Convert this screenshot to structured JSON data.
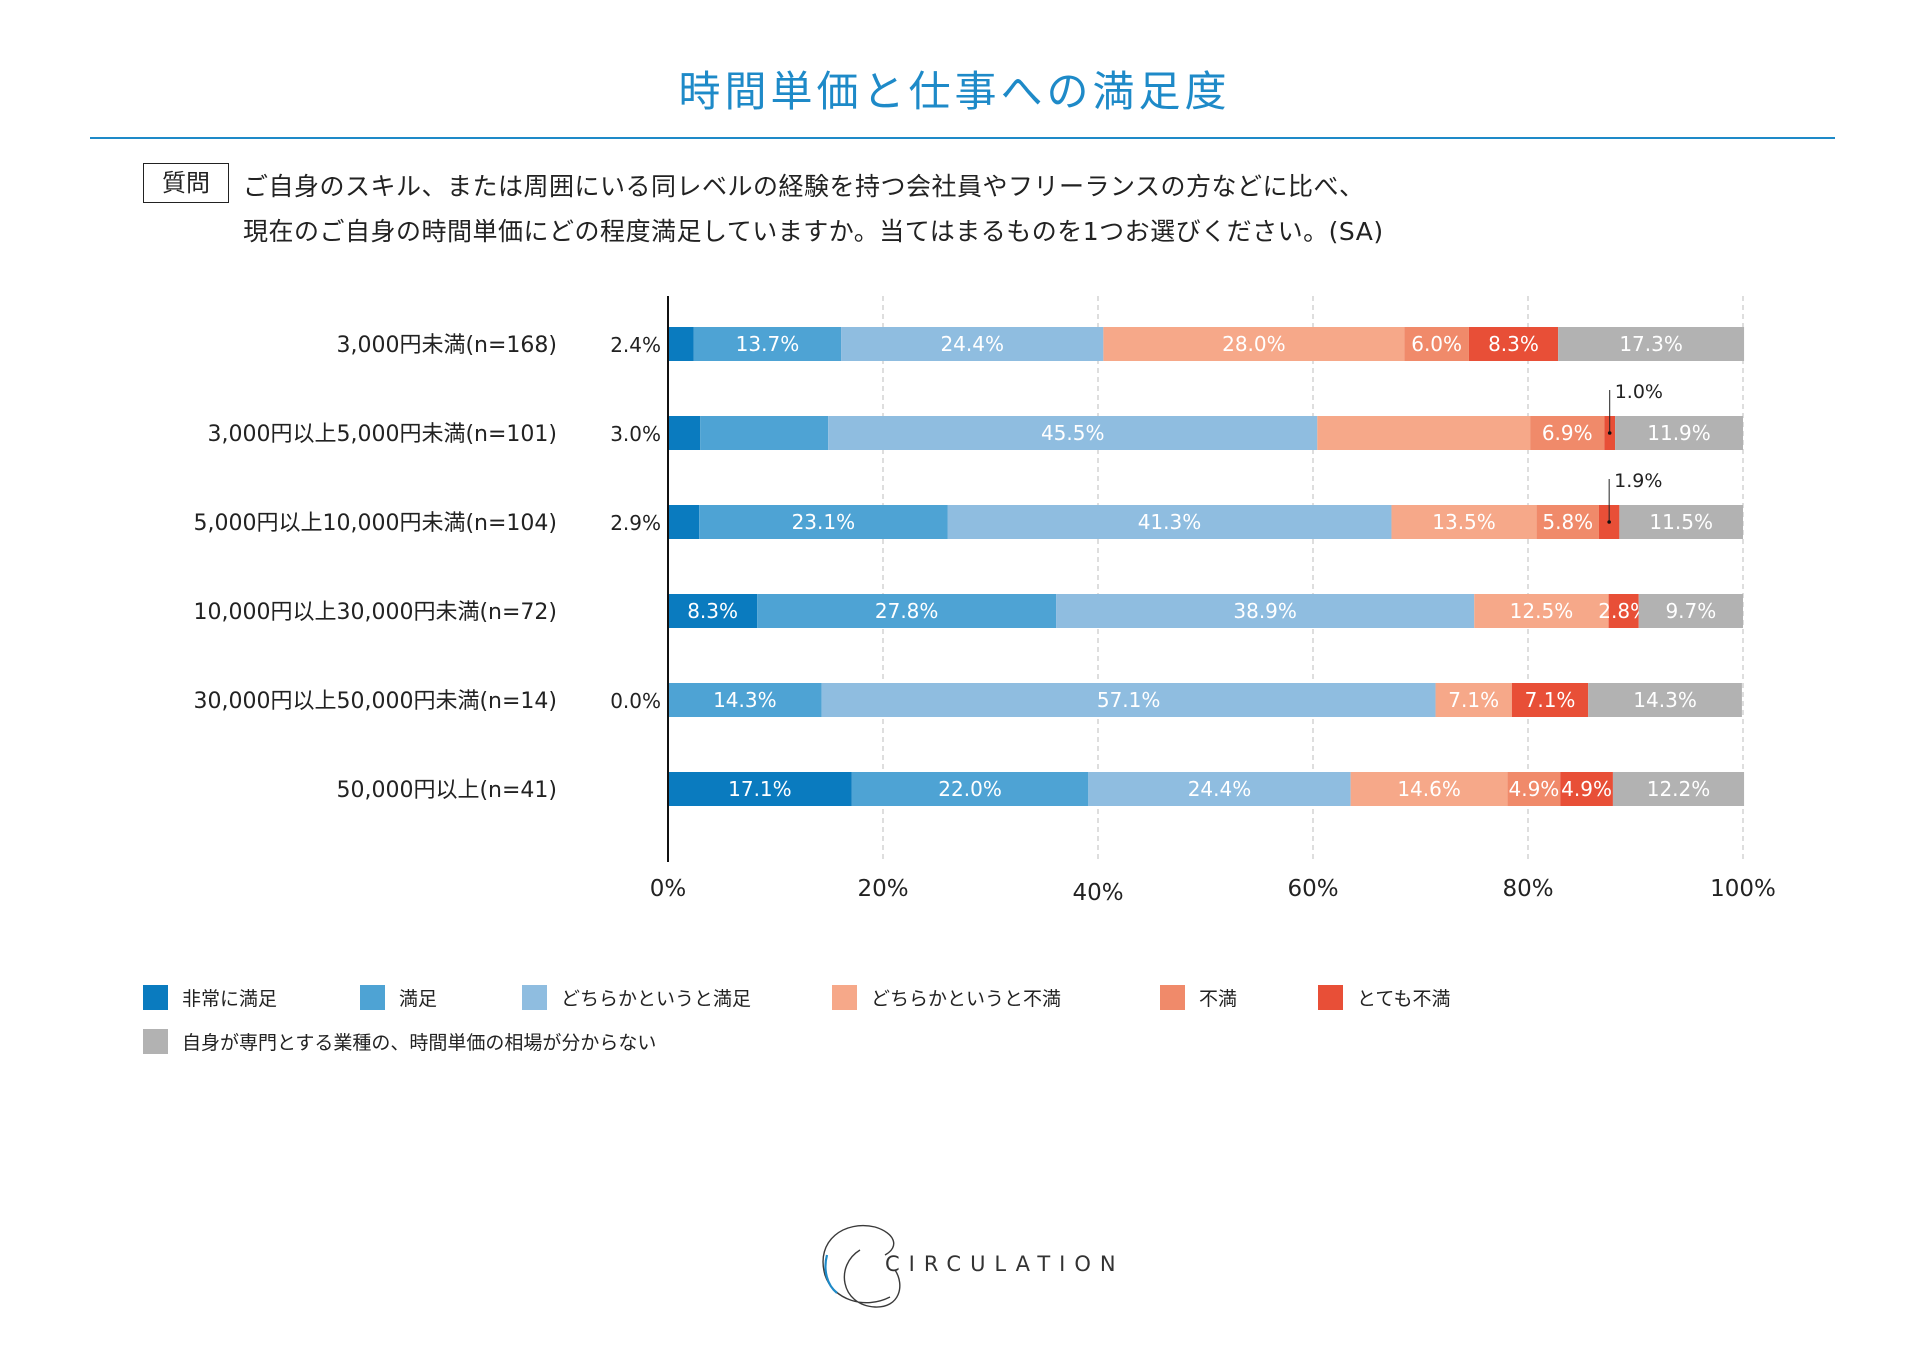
{
  "title": "時間単価と仕事への満足度",
  "question": {
    "label": "質問",
    "line1": "ご自身のスキル、または周囲にいる同レベルの経験を持つ会社員やフリーランスの方などに比べ、",
    "line2": "現在のご自身の時間単価にどの程度満足していますか。当てはまるものを1つお選びください。(SA)"
  },
  "chart_data": {
    "type": "bar",
    "orientation": "horizontal-stacked-100",
    "categories": [
      "3,000円未満(n=168)",
      "3,000円以上5,000円未満(n=101)",
      "5,000円以上10,000円未満(n=104)",
      "10,000円以上30,000円未満(n=72)",
      "30,000円以上50,000円未満(n=14)",
      "50,000円以上(n=41)"
    ],
    "series": [
      {
        "name": "非常に満足",
        "color": "#0a7bbf",
        "values": [
          2.4,
          3.0,
          2.9,
          8.3,
          0.0,
          17.1
        ],
        "labels": [
          "2.4%",
          "3.0%",
          "2.9%",
          "8.3%",
          "0.0%",
          "17.1%"
        ],
        "label_outside": [
          true,
          true,
          true,
          false,
          true,
          false
        ]
      },
      {
        "name": "満足",
        "color": "#4ea3d4",
        "values": [
          13.7,
          11.9,
          23.1,
          27.8,
          14.3,
          22.0
        ],
        "labels": [
          "13.7%",
          "",
          "23.1%",
          "27.8%",
          "14.3%",
          "22.0%"
        ]
      },
      {
        "name": "どちらかというと満足",
        "color": "#8fbde0",
        "values": [
          24.4,
          45.5,
          41.3,
          38.9,
          57.1,
          24.4
        ],
        "labels": [
          "24.4%",
          "45.5%",
          "41.3%",
          "38.9%",
          "57.1%",
          "24.4%"
        ]
      },
      {
        "name": "どちらかというと不満",
        "color": "#f6a889",
        "values": [
          28.0,
          19.8,
          13.5,
          12.5,
          7.1,
          14.6
        ],
        "labels": [
          "28.0%",
          "",
          "13.5%",
          "12.5%",
          "7.1%",
          "14.6%"
        ]
      },
      {
        "name": "不満",
        "color": "#f08a6a",
        "values": [
          6.0,
          6.9,
          5.8,
          0.0,
          0.0,
          4.9
        ],
        "labels": [
          "6.0%",
          "6.9%",
          "5.8%",
          "",
          "",
          "4.9%"
        ]
      },
      {
        "name": "とても不満",
        "color": "#e84f37",
        "values": [
          8.3,
          1.0,
          1.9,
          2.8,
          7.1,
          4.9
        ],
        "labels": [
          "8.3%",
          "1.0%",
          "1.9%",
          "2.8%",
          "7.1%",
          "4.9%"
        ],
        "callout": [
          false,
          true,
          true,
          false,
          false,
          false
        ]
      },
      {
        "name": "自身が専門とする業種の、時間単価の相場が分からない",
        "color": "#b2b2b2",
        "values": [
          17.3,
          11.9,
          11.5,
          9.7,
          14.3,
          12.2
        ],
        "labels": [
          "17.3%",
          "11.9%",
          "11.5%",
          "9.7%",
          "14.3%",
          "12.2%"
        ]
      }
    ],
    "xticks": [
      "0%",
      "20%",
      "40%",
      "60%",
      "80%",
      "100%"
    ],
    "xlim": [
      0,
      100
    ],
    "legend": "bottom-left",
    "grid": "vertical-dashed"
  },
  "brand": {
    "name": "CIRCULATION"
  }
}
